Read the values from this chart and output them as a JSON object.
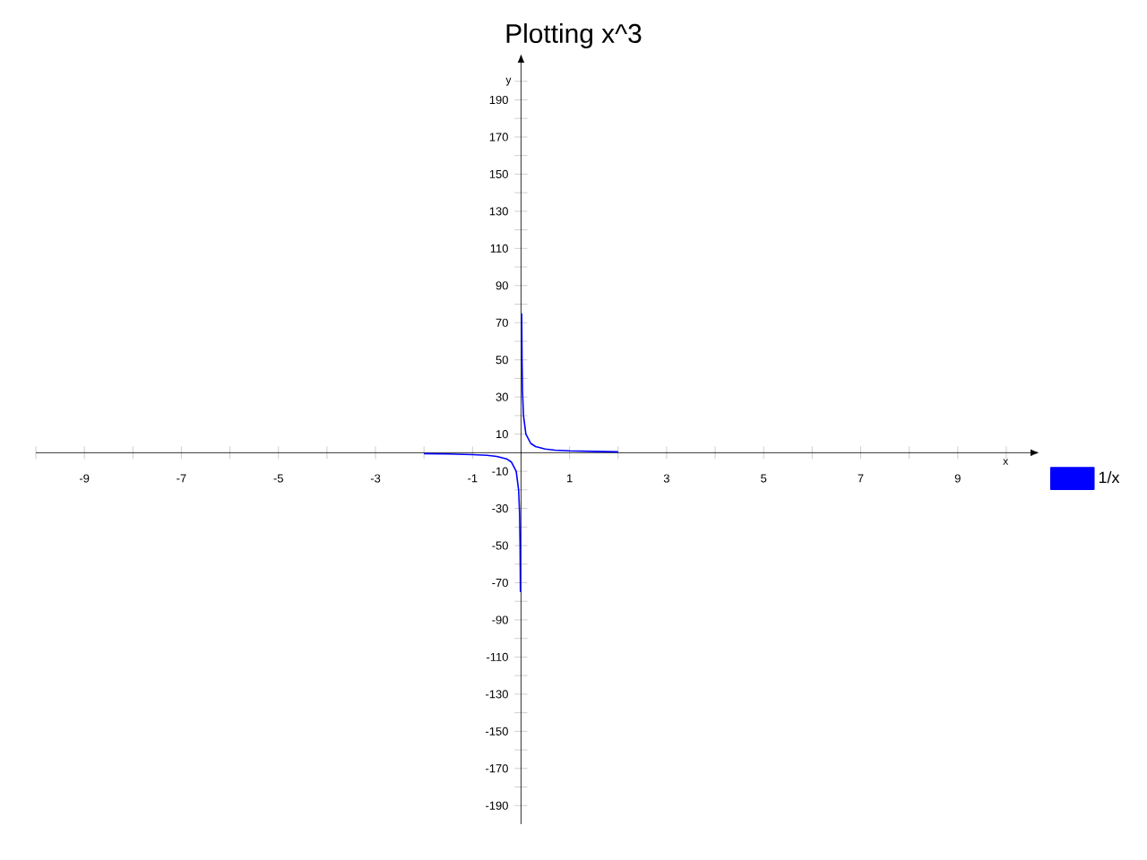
{
  "chart_data": {
    "type": "line",
    "title": "Plotting x^3",
    "xlabel": "x",
    "ylabel": "y",
    "x": [
      -2,
      -1.5,
      -1,
      -0.7,
      -0.5,
      -0.3,
      -0.2,
      -0.1,
      -0.05,
      -0.03,
      -0.02,
      -0.013,
      0,
      0.013,
      0.02,
      0.03,
      0.05,
      0.1,
      0.2,
      0.3,
      0.5,
      0.7,
      1,
      1.5,
      2
    ],
    "series": [
      {
        "name": "1/x",
        "color": "#0000ff",
        "values": [
          -0.5,
          -0.7,
          -1,
          -1.4,
          -2,
          -3.3,
          -5,
          -10,
          -20,
          -33,
          -50,
          -75,
          null,
          75,
          50,
          33,
          20,
          10,
          5,
          3.3,
          2,
          1.4,
          1,
          0.7,
          0.5
        ]
      }
    ],
    "xlim": [
      -10,
      10.5
    ],
    "ylim": [
      -200,
      210
    ],
    "xticks": [
      {
        "value": -10,
        "label": null
      },
      -9,
      {
        "value": -8,
        "label": null
      },
      -7,
      {
        "value": -6,
        "label": null
      },
      -5,
      {
        "value": -4,
        "label": null
      },
      -3,
      {
        "value": -2,
        "label": null
      },
      -1,
      {
        "value": 0,
        "label": null
      },
      1,
      {
        "value": 2,
        "label": null
      },
      3,
      {
        "value": 4,
        "label": null
      },
      5,
      {
        "value": 6,
        "label": null
      },
      7,
      {
        "value": 8,
        "label": null
      },
      9,
      {
        "value": 10,
        "label": null
      }
    ],
    "yticks": [
      -190,
      {
        "value": -180,
        "label": null
      },
      -170,
      {
        "value": -160,
        "label": null
      },
      -150,
      {
        "value": -140,
        "label": null
      },
      -130,
      {
        "value": -120,
        "label": null
      },
      -110,
      {
        "value": -100,
        "label": null
      },
      -90,
      {
        "value": -80,
        "label": null
      },
      -70,
      {
        "value": -60,
        "label": null
      },
      -50,
      {
        "value": -40,
        "label": null
      },
      -30,
      {
        "value": -20,
        "label": null
      },
      -10,
      {
        "value": 0,
        "label": null
      },
      10,
      {
        "value": 20,
        "label": null
      },
      30,
      {
        "value": 40,
        "label": null
      },
      50,
      {
        "value": 60,
        "label": null
      },
      70,
      {
        "value": 80,
        "label": null
      },
      90,
      {
        "value": 100,
        "label": null
      },
      110,
      {
        "value": 120,
        "label": null
      },
      130,
      {
        "value": 140,
        "label": null
      },
      150,
      {
        "value": 160,
        "label": null
      },
      170,
      {
        "value": 180,
        "label": null
      },
      190,
      {
        "value": 200,
        "label": null
      }
    ],
    "legend": "right"
  }
}
